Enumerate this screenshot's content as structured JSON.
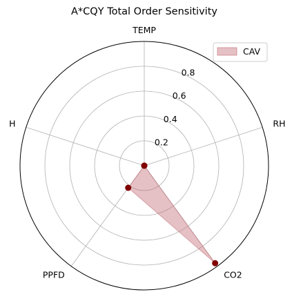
{
  "chart_data": {
    "type": "radar",
    "title": "A*CQY Total Order Sensitivity",
    "axes": [
      "TEMP",
      "RH",
      "CO2",
      "PPFD",
      "H"
    ],
    "series": [
      {
        "name": "CAV",
        "values": [
          0.0,
          0.0,
          0.97,
          0.22,
          0.0
        ],
        "fill_color": "#c26a73",
        "line_color": "#8b0000",
        "marker_color": "#800000"
      }
    ],
    "r_ticks": [
      0.2,
      0.4,
      0.6,
      0.8
    ],
    "r_tick_labels": [
      "0.2",
      "0.4",
      "0.6",
      "0.8"
    ],
    "r_range": [
      0,
      1.0
    ],
    "grid": true,
    "legend_position": "top-right"
  }
}
